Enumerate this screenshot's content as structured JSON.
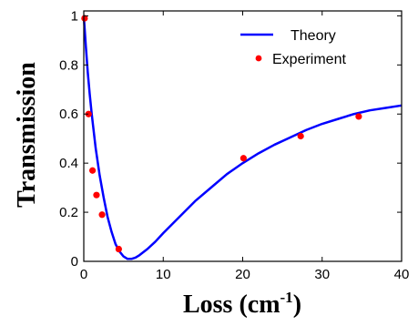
{
  "chart_data": {
    "type": "line",
    "xlabel_main": "Loss (cm",
    "xlabel_sup": "-1",
    "xlabel_close": ")",
    "ylabel": "Transmission",
    "xlim": [
      0,
      40
    ],
    "ylim": [
      0,
      1.02
    ],
    "x_ticks": [
      "0",
      "10",
      "20",
      "30",
      "40"
    ],
    "y_ticks": [
      "0",
      "0.2",
      "0.4",
      "0.6",
      "0.8",
      "1"
    ],
    "grid": false,
    "legend_position": "top-right",
    "series": [
      {
        "name": "Theory",
        "kind": "line",
        "color": "#0000ff",
        "x": [
          0,
          0.25,
          0.5,
          0.75,
          1,
          1.5,
          2,
          2.5,
          3,
          3.5,
          4,
          4.5,
          5,
          5.5,
          6,
          6.5,
          7,
          8,
          9,
          10,
          12,
          14,
          16,
          18,
          20,
          22,
          24,
          26,
          28,
          30,
          32,
          34,
          36,
          38,
          40
        ],
        "values": [
          1.0,
          0.88,
          0.77,
          0.68,
          0.6,
          0.46,
          0.35,
          0.26,
          0.18,
          0.12,
          0.07,
          0.04,
          0.02,
          0.01,
          0.01,
          0.015,
          0.025,
          0.05,
          0.08,
          0.115,
          0.18,
          0.245,
          0.3,
          0.355,
          0.4,
          0.44,
          0.475,
          0.505,
          0.535,
          0.56,
          0.58,
          0.6,
          0.615,
          0.625,
          0.635
        ]
      },
      {
        "name": "Experiment",
        "kind": "scatter",
        "color": "#ff0000",
        "x": [
          0.1,
          0.6,
          1.1,
          1.6,
          2.3,
          4.4,
          20.1,
          27.3,
          34.6
        ],
        "values": [
          0.99,
          0.6,
          0.37,
          0.27,
          0.19,
          0.05,
          0.42,
          0.51,
          0.59
        ]
      }
    ]
  }
}
